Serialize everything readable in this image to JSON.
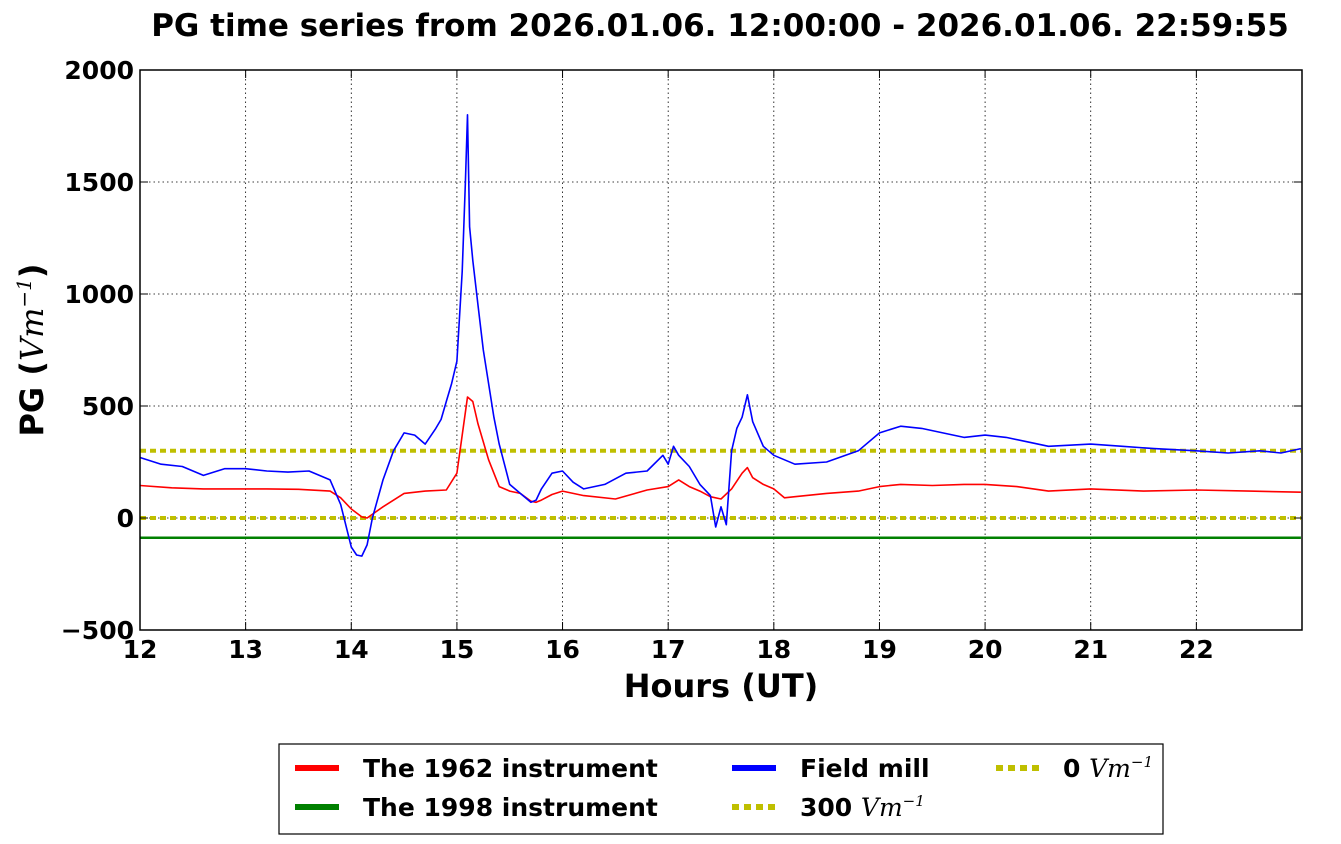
{
  "chart_data": {
    "type": "line",
    "title": "PG time series from 2026.01.06. 12:00:00 - 2026.01.06. 22:59:55",
    "xlabel": "Hours (UT)",
    "ylabel": {
      "text": "PG (",
      "unit": "Vm",
      "exponent": "−1",
      "close": ")"
    },
    "xlim": [
      12,
      23
    ],
    "ylim": [
      -500,
      2000
    ],
    "xticks": [
      12,
      13,
      14,
      15,
      16,
      17,
      18,
      19,
      20,
      21,
      22
    ],
    "yticks": [
      -500,
      0,
      500,
      1000,
      1500,
      2000
    ],
    "ytick_labels": [
      "−500",
      "0",
      "500",
      "1000",
      "1500",
      "2000"
    ],
    "grid": true,
    "legend_placement": "below",
    "series": [
      {
        "name": "The 1962 instrument",
        "color": "#ff0000",
        "style": "solid",
        "x": [
          12.0,
          12.3,
          12.6,
          12.9,
          13.2,
          13.5,
          13.8,
          13.9,
          14.0,
          14.1,
          14.15,
          14.3,
          14.5,
          14.7,
          14.9,
          15.0,
          15.05,
          15.1,
          15.15,
          15.2,
          15.3,
          15.4,
          15.5,
          15.6,
          15.7,
          15.75,
          15.8,
          15.9,
          16.0,
          16.2,
          16.5,
          16.8,
          17.0,
          17.1,
          17.2,
          17.3,
          17.4,
          17.5,
          17.6,
          17.7,
          17.75,
          17.8,
          17.9,
          18.0,
          18.1,
          18.2,
          18.5,
          18.8,
          19.0,
          19.2,
          19.5,
          19.8,
          20.0,
          20.3,
          20.6,
          21.0,
          21.5,
          22.0,
          22.5,
          22.99
        ],
        "y": [
          145,
          135,
          130,
          130,
          130,
          128,
          120,
          90,
          40,
          5,
          0,
          50,
          110,
          120,
          125,
          200,
          370,
          540,
          520,
          420,
          260,
          140,
          120,
          110,
          75,
          70,
          80,
          105,
          120,
          100,
          85,
          125,
          140,
          170,
          140,
          120,
          95,
          85,
          130,
          200,
          225,
          180,
          150,
          130,
          90,
          95,
          110,
          120,
          140,
          150,
          145,
          150,
          150,
          140,
          120,
          130,
          120,
          125,
          120,
          115
        ]
      },
      {
        "name": "The 1998 instrument",
        "color": "#008000",
        "style": "solid",
        "x": [
          12.0,
          22.99
        ],
        "y": [
          -88,
          -88
        ]
      },
      {
        "name": "Field mill",
        "color": "#0000ff",
        "style": "solid",
        "x": [
          12.0,
          12.2,
          12.4,
          12.6,
          12.8,
          13.0,
          13.2,
          13.4,
          13.6,
          13.8,
          13.9,
          14.0,
          14.05,
          14.1,
          14.15,
          14.2,
          14.3,
          14.4,
          14.5,
          14.6,
          14.7,
          14.8,
          14.85,
          14.9,
          14.95,
          15.0,
          15.05,
          15.08,
          15.1,
          15.12,
          15.15,
          15.2,
          15.25,
          15.3,
          15.35,
          15.4,
          15.5,
          15.6,
          15.7,
          15.75,
          15.8,
          15.9,
          16.0,
          16.1,
          16.2,
          16.4,
          16.6,
          16.8,
          16.95,
          17.0,
          17.05,
          17.1,
          17.2,
          17.3,
          17.4,
          17.45,
          17.5,
          17.55,
          17.6,
          17.65,
          17.7,
          17.75,
          17.8,
          17.9,
          18.0,
          18.2,
          18.5,
          18.8,
          19.0,
          19.2,
          19.4,
          19.6,
          19.8,
          20.0,
          20.2,
          20.4,
          20.6,
          21.0,
          21.3,
          21.6,
          22.0,
          22.3,
          22.6,
          22.8,
          22.99
        ],
        "y": [
          270,
          240,
          230,
          190,
          220,
          220,
          210,
          205,
          210,
          170,
          60,
          -130,
          -165,
          -170,
          -120,
          0,
          170,
          300,
          380,
          370,
          330,
          400,
          440,
          520,
          600,
          700,
          1100,
          1500,
          1800,
          1300,
          1150,
          950,
          750,
          600,
          450,
          330,
          150,
          110,
          70,
          80,
          130,
          200,
          210,
          160,
          130,
          150,
          200,
          210,
          280,
          240,
          320,
          280,
          230,
          150,
          100,
          -40,
          50,
          -30,
          300,
          400,
          450,
          550,
          430,
          320,
          280,
          240,
          250,
          300,
          380,
          410,
          400,
          380,
          360,
          370,
          360,
          340,
          320,
          330,
          320,
          310,
          300,
          290,
          300,
          290,
          310
        ]
      },
      {
        "name": "300 Vm",
        "legend_value": "300",
        "legend_unit": "Vm",
        "legend_exp": "−1",
        "color": "#bfbf00",
        "style": "dotted",
        "x": [
          12.0,
          22.99
        ],
        "y": [
          300,
          300
        ]
      },
      {
        "name": "0 Vm",
        "legend_value": "0",
        "legend_unit": "Vm",
        "legend_exp": "−1",
        "color": "#bfbf00",
        "style": "dotted",
        "x": [
          12.0,
          22.99
        ],
        "y": [
          0,
          0
        ]
      }
    ]
  }
}
